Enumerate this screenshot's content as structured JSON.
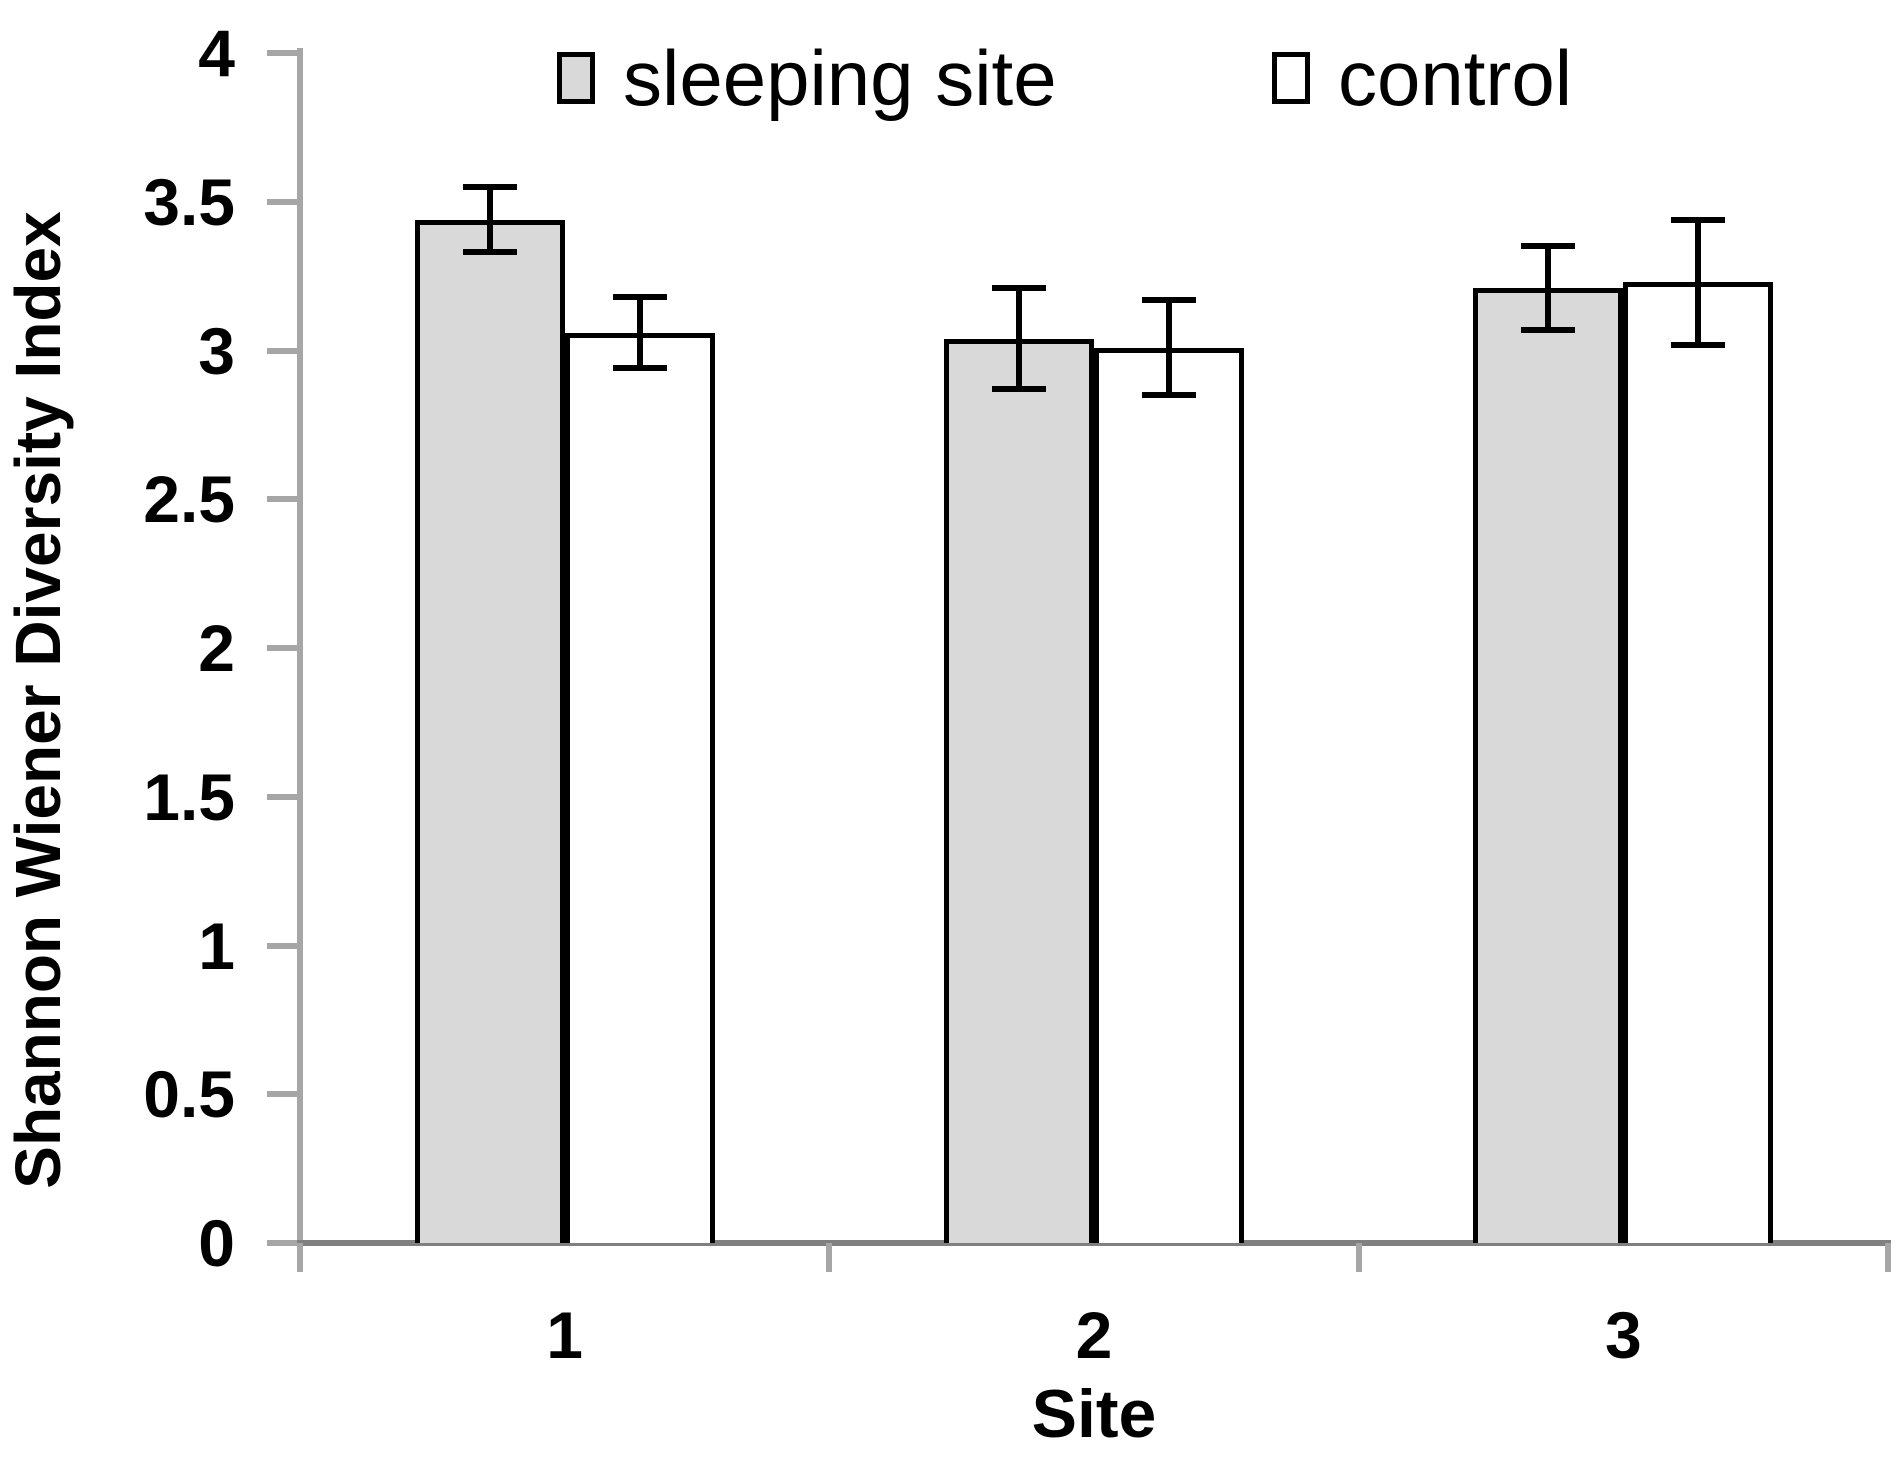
{
  "figure": {
    "ylabel": "Shannon Wiener Diversity Index",
    "xlabel": "Site"
  },
  "legend": {
    "items": [
      {
        "label": "sleeping site",
        "fill": "#d9d9d9"
      },
      {
        "label": "control",
        "fill": "#ffffff"
      }
    ]
  },
  "chart_data": {
    "type": "bar",
    "title": "",
    "categories": [
      "1",
      "2",
      "3"
    ],
    "series": [
      {
        "name": "sleeping site",
        "fill": "#d9d9d9",
        "values": [
          3.44,
          3.04,
          3.21
        ],
        "errors": [
          0.11,
          0.17,
          0.14
        ]
      },
      {
        "name": "control",
        "fill": "#ffffff",
        "values": [
          3.06,
          3.01,
          3.23
        ],
        "errors": [
          0.12,
          0.16,
          0.21
        ]
      }
    ],
    "xlabel": "Site",
    "ylabel": "Shannon Wiener Diversity Index",
    "ylim": [
      0,
      4
    ],
    "ytick_step": 0.5,
    "yticks": [
      "0",
      "0.5",
      "1",
      "1.5",
      "2",
      "2.5",
      "3",
      "3.5",
      "4"
    ],
    "legend_position": "top",
    "grid": false,
    "error_bars": true
  },
  "colors": {
    "background": "#ffffff",
    "text": "#000000",
    "bar_border": "#000000",
    "error_bar": "#000000",
    "x_axis_line": "#808080",
    "y_axis_line": "#a6a6a6",
    "tick_mark": "#a6a6a6"
  }
}
